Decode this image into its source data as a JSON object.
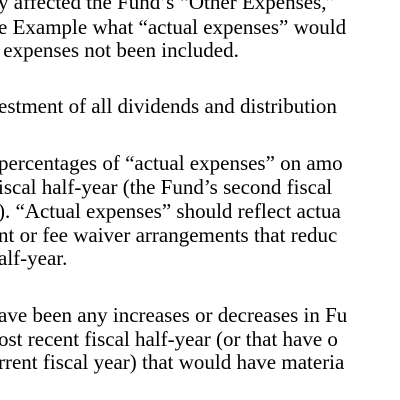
{
  "document": {
    "lines": [
      "y affected the Fund’s “Other Expenses,”",
      "e Example what “actual expenses” would",
      " expenses not been included.",
      "estment of all dividends and distribution",
      "percentages of “actual expenses” on amo",
      "iscal half-year (the Fund’s second fiscal",
      "). “Actual expenses” should reflect actua",
      "nt or fee waiver arrangements that reduc",
      "alf-year.",
      "ave been any increases or decreases in Fu",
      "ost recent fiscal half-year (or that have o",
      "rrent fiscal year) that would have materia"
    ]
  }
}
